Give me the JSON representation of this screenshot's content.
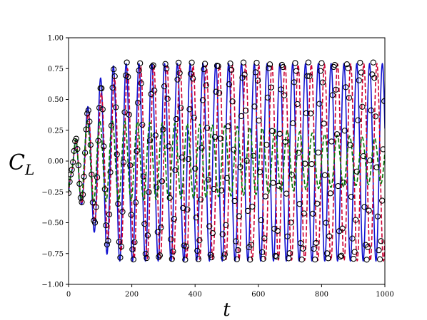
{
  "chart_data": {
    "type": "line",
    "title": "",
    "xlabel": "t",
    "ylabel_main": "C",
    "ylabel_sub": "L",
    "xlim": [
      0,
      1000
    ],
    "ylim": [
      -1.0,
      1.0
    ],
    "x_ticks": [
      0,
      200,
      400,
      600,
      800,
      1000
    ],
    "x_tick_labels": [
      "0",
      "200",
      "400",
      "600",
      "800",
      "1000"
    ],
    "y_ticks": [
      -1.0,
      -0.75,
      -0.5,
      -0.25,
      0.0,
      0.25,
      0.5,
      0.75,
      1.0
    ],
    "y_tick_labels": [
      "−1.00",
      "−0.75",
      "−0.50",
      "−0.25",
      "0.00",
      "0.25",
      "0.50",
      "0.75",
      "1.00"
    ],
    "grid": false,
    "legend": "none",
    "series": [
      {
        "style": "solid",
        "color": "#1010d0",
        "marker": "none",
        "period": 40.5,
        "amplitude": [
          [
            0,
            0.0
          ],
          [
            10,
            0.0
          ],
          [
            25,
            0.25
          ],
          [
            40,
            0.34
          ],
          [
            70,
            0.5
          ],
          [
            100,
            0.68
          ],
          [
            130,
            0.77
          ],
          [
            160,
            0.8
          ],
          [
            1000,
            0.8
          ]
        ],
        "offset": -0.01
      },
      {
        "style": "dashed",
        "color": "#cc0033",
        "marker": "none",
        "period": 41.5,
        "amplitude": [
          [
            0,
            0.0
          ],
          [
            10,
            0.0
          ],
          [
            25,
            0.25
          ],
          [
            40,
            0.33
          ],
          [
            70,
            0.42
          ],
          [
            100,
            0.55
          ],
          [
            150,
            0.7
          ],
          [
            200,
            0.78
          ],
          [
            1000,
            0.8
          ]
        ],
        "offset": -0.01
      },
      {
        "style": "dashed",
        "color": "#007700",
        "marker": "none",
        "period": 39.5,
        "amplitude": [
          [
            0,
            0.0
          ],
          [
            10,
            0.0
          ],
          [
            25,
            0.25
          ],
          [
            40,
            0.32
          ],
          [
            80,
            0.33
          ],
          [
            200,
            0.32
          ],
          [
            400,
            0.3
          ],
          [
            600,
            0.27
          ],
          [
            800,
            0.22
          ],
          [
            1000,
            0.18
          ]
        ],
        "offset": 0.0
      },
      {
        "style": "none",
        "color": "#000000",
        "marker": "circle",
        "period": 41.0,
        "amplitude": [
          [
            0,
            0.0
          ],
          [
            10,
            0.0
          ],
          [
            25,
            0.25
          ],
          [
            40,
            0.33
          ],
          [
            70,
            0.45
          ],
          [
            110,
            0.65
          ],
          [
            150,
            0.77
          ],
          [
            180,
            0.8
          ],
          [
            1000,
            0.8
          ]
        ],
        "offset": 0.0,
        "marker_step": 8
      }
    ]
  }
}
